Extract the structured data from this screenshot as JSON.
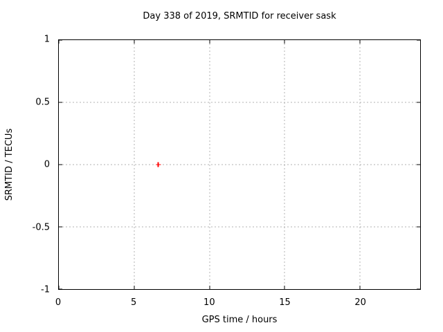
{
  "chart_data": {
    "type": "scatter",
    "title": "Day 338 of 2019, SRMTID for receiver sask",
    "xlabel": "GPS time / hours",
    "ylabel": "SRMTID / TECUs",
    "xlim": [
      0,
      24
    ],
    "ylim": [
      -1,
      1
    ],
    "xticks": [
      0,
      5,
      10,
      15,
      20
    ],
    "xtick_labels": [
      "0",
      "5",
      "10",
      "15",
      "20"
    ],
    "yticks": [
      1,
      0.5,
      0,
      -0.5,
      -1
    ],
    "ytick_labels": [
      "1",
      "0.5",
      "0",
      "-0.5",
      "-1"
    ],
    "grid": "dotted gridlines at major ticks, ticks mirrored on all four borders",
    "legend": "none",
    "series": [
      {
        "name": "SRMTID",
        "marker": "plus",
        "color": "#ff0000",
        "points": [
          {
            "x": 6.6,
            "y": 0.0
          }
        ]
      }
    ]
  },
  "colors": {
    "background": "#ffffff",
    "plot_border": "#000000",
    "grid": "#b0b0b0",
    "text": "#000000",
    "marker": "#ff0000"
  }
}
